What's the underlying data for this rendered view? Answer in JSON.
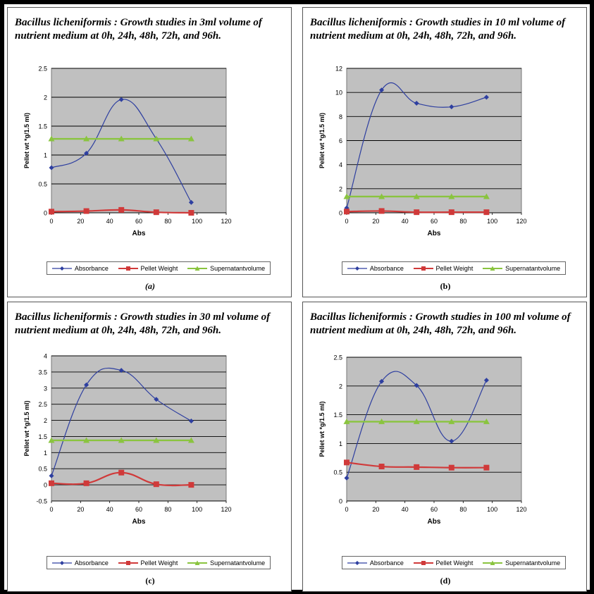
{
  "legend": {
    "absorbance": "Absorbance",
    "pellet": "Pellet Weight",
    "supernatant": "Supernatantvolume"
  },
  "colors": {
    "absorbance": "#2e3fa0",
    "pellet": "#d03a3a",
    "supernatant": "#8ac43f",
    "plot_area": "#c0c0c0"
  },
  "chart_data": [
    {
      "type": "line",
      "title": "Bacillus licheniformis : Growth studies in 3ml volume of nutrient medium at 0h, 24h, 48h, 72h, and 96h.",
      "caption": "(a)",
      "xlabel": "Abs",
      "ylabel": "Pellet wt *g/1.5 ml)",
      "xlim": [
        0,
        120
      ],
      "xticks": [
        0,
        20,
        40,
        60,
        80,
        100,
        120
      ],
      "ylim": [
        0,
        2.5
      ],
      "yticks": [
        0,
        0.5,
        1,
        1.5,
        2,
        2.5
      ],
      "x": [
        0,
        24,
        48,
        72,
        96
      ],
      "series": [
        {
          "name": "Absorbance",
          "values": [
            0.78,
            1.03,
            1.96,
            1.28,
            0.18
          ]
        },
        {
          "name": "Pellet Weight",
          "values": [
            0.02,
            0.03,
            0.05,
            0.01,
            0.0
          ]
        },
        {
          "name": "Supernatantvolume",
          "values": [
            1.28,
            1.28,
            1.28,
            1.28,
            1.28
          ]
        }
      ],
      "grid": true,
      "legend_position": "bottom"
    },
    {
      "type": "line",
      "title": "Bacillus licheniformis : Growth studies in 10 ml volume of nutrient medium at 0h, 24h, 48h, 72h, and 96h.",
      "caption": "(b)",
      "xlabel": "Abs",
      "ylabel": "Pellet wt *g/1.5 ml)",
      "xlim": [
        0,
        120
      ],
      "xticks": [
        0,
        20,
        40,
        60,
        80,
        100,
        120
      ],
      "ylim": [
        0,
        12
      ],
      "yticks": [
        0,
        2,
        4,
        6,
        8,
        10,
        12
      ],
      "x": [
        0,
        24,
        48,
        72,
        96
      ],
      "series": [
        {
          "name": "Absorbance",
          "values": [
            0.4,
            10.2,
            9.1,
            8.8,
            9.6
          ]
        },
        {
          "name": "Pellet Weight",
          "values": [
            0.1,
            0.15,
            0.05,
            0.05,
            0.05
          ]
        },
        {
          "name": "Supernatantvolume",
          "values": [
            1.35,
            1.35,
            1.35,
            1.35,
            1.35
          ]
        }
      ],
      "grid": true,
      "legend_position": "bottom"
    },
    {
      "type": "line",
      "title": "Bacillus licheniformis : Growth studies in 30 ml volume of nutrient medium at 0h, 24h, 48h, 72h, and 96h.",
      "caption": "(c)",
      "xlabel": "Abs",
      "ylabel": "Pellet wt *g/1.5 ml)",
      "xlim": [
        0,
        120
      ],
      "xticks": [
        0,
        20,
        40,
        60,
        80,
        100,
        120
      ],
      "ylim": [
        -0.5,
        4
      ],
      "yticks": [
        -0.5,
        0,
        0.5,
        1,
        1.5,
        2,
        2.5,
        3,
        3.5,
        4
      ],
      "x": [
        0,
        24,
        48,
        72,
        96
      ],
      "series": [
        {
          "name": "Absorbance",
          "values": [
            0.28,
            3.1,
            3.55,
            2.65,
            1.98
          ]
        },
        {
          "name": "Pellet Weight",
          "values": [
            0.05,
            0.05,
            0.38,
            0.02,
            0.0
          ]
        },
        {
          "name": "Supernatantvolume",
          "values": [
            1.38,
            1.38,
            1.38,
            1.38,
            1.38
          ]
        }
      ],
      "grid": true,
      "legend_position": "bottom"
    },
    {
      "type": "line",
      "title": "Bacillus licheniformis : Growth studies in 100 ml volume of nutrient medium at 0h, 24h, 48h, 72h, and 96h.",
      "caption": "(d)",
      "xlabel": "Abs",
      "ylabel": "Pellet wt *g/1.5 ml)",
      "xlim": [
        0,
        120
      ],
      "xticks": [
        0,
        20,
        40,
        60,
        80,
        100,
        120
      ],
      "ylim": [
        0,
        2.5
      ],
      "yticks": [
        0,
        0.5,
        1,
        1.5,
        2,
        2.5
      ],
      "x": [
        0,
        24,
        48,
        72,
        96
      ],
      "series": [
        {
          "name": "Absorbance",
          "values": [
            0.4,
            2.08,
            2.01,
            1.04,
            2.1
          ]
        },
        {
          "name": "Pellet Weight",
          "values": [
            0.67,
            0.6,
            0.59,
            0.58,
            0.58
          ]
        },
        {
          "name": "Supernatantvolume",
          "values": [
            1.38,
            1.38,
            1.38,
            1.38,
            1.38
          ]
        }
      ],
      "grid": true,
      "legend_position": "bottom"
    }
  ]
}
